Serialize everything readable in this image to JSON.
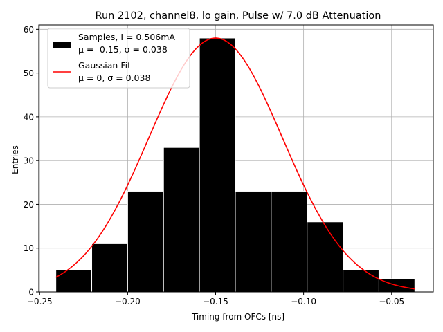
{
  "chart_data": {
    "type": "bar",
    "title": "Run 2102, channel8, lo gain, Pulse w/ 7.0 dB Attenuation",
    "xlabel": "Timing from OFCs [ns]",
    "ylabel": "Entries",
    "xlim": [
      -0.2505,
      -0.0263
    ],
    "ylim": [
      0,
      61
    ],
    "x_ticks": [
      -0.25,
      -0.2,
      -0.15,
      -0.1,
      -0.05
    ],
    "x_tick_labels": [
      "−0.25",
      "−0.20",
      "−0.15",
      "−0.10",
      "−0.05"
    ],
    "y_ticks": [
      0,
      10,
      20,
      30,
      40,
      50,
      60
    ],
    "y_tick_labels": [
      "0",
      "10",
      "20",
      "30",
      "40",
      "50",
      "60"
    ],
    "grid": true,
    "legend_position": "top-left",
    "histogram": {
      "name_lines": [
        "Samples, I = 0.506mA",
        "μ = -0.15, σ = 0.038"
      ],
      "color": "#000000",
      "edge_color": "#ffffff",
      "bin_edges": [
        -0.2408,
        -0.2204,
        -0.2,
        -0.1796,
        -0.1592,
        -0.1388,
        -0.1184,
        -0.098,
        -0.0776,
        -0.0572,
        -0.0368
      ],
      "counts": [
        5,
        11,
        23,
        33,
        58,
        23,
        23,
        16,
        5,
        3
      ]
    },
    "fit": {
      "name_lines": [
        "Gaussian Fit",
        "μ = 0, σ = 0.038"
      ],
      "color": "#ff0000",
      "amplitude": 58,
      "mean": -0.15,
      "sigma": 0.038,
      "x_range": [
        -0.2408,
        -0.0368
      ]
    }
  }
}
